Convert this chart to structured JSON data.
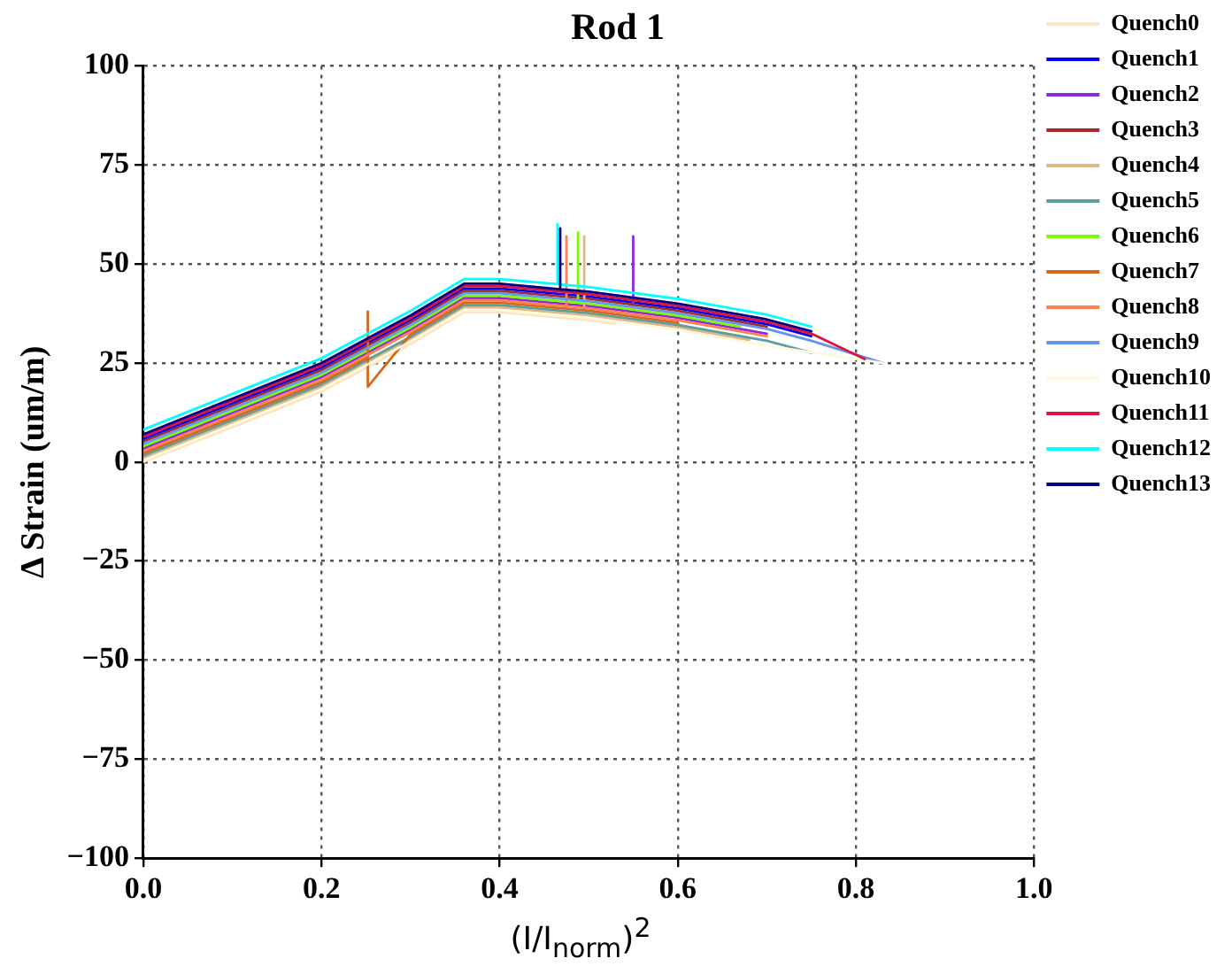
{
  "chart_data": {
    "type": "line",
    "title": "Rod 1",
    "xlabel": "(I/I$_{norm}$)$^{2}$",
    "ylabel": "Δ Strain (um/m)",
    "xlim": [
      0,
      1
    ],
    "ylim": [
      -100,
      100
    ],
    "xticks": [
      {
        "value": 0,
        "label": "0.0"
      },
      {
        "value": 0.2,
        "label": "0.2"
      },
      {
        "value": 0.4,
        "label": "0.4"
      },
      {
        "value": 0.6,
        "label": "0.6"
      },
      {
        "value": 0.8,
        "label": "0.8"
      },
      {
        "value": 1,
        "label": "1.0"
      }
    ],
    "yticks": [
      {
        "value": -100,
        "label": "−100"
      },
      {
        "value": -75,
        "label": "−75"
      },
      {
        "value": -50,
        "label": "−50"
      },
      {
        "value": -25,
        "label": "−25"
      },
      0,
      25,
      50,
      75,
      100
    ],
    "grid": true,
    "legend": "top right",
    "marker": "none",
    "line_style": "solid",
    "series": [
      {
        "name": "Quench0",
        "color": "#fde5c4",
        "x": [
          0,
          0.1,
          0.2,
          0.3,
          0.36,
          0.4,
          0.5,
          0.53
        ],
        "values": [
          0,
          8.8,
          17.8,
          29.8,
          37.8,
          37.8,
          35.8,
          34.9
        ]
      },
      {
        "name": "Quench1",
        "color": "#0000ff",
        "x": [
          0,
          0.1,
          0.2,
          0.3,
          0.36,
          0.4,
          0.5,
          0.6,
          0.7,
          0.75
        ],
        "values": [
          5.8,
          14.8,
          23.8,
          35.8,
          43.8,
          43.8,
          41.8,
          38.8,
          34.8,
          31.8
        ]
      },
      {
        "name": "Quench2",
        "color": "#8a2be2",
        "x": [
          0,
          0.1,
          0.2,
          0.3,
          0.36,
          0.4,
          0.5,
          0.55,
          0.55,
          0.55,
          0.6,
          0.7
        ],
        "values": [
          3.4,
          12.4,
          21.4,
          33.4,
          41.4,
          41.4,
          39.4,
          37.9,
          57,
          37.9,
          36.4,
          32.4
        ]
      },
      {
        "name": "Quench3",
        "color": "#a52a2a",
        "x": [
          0,
          0.1,
          0.2,
          0.3,
          0.36,
          0.4,
          0.5,
          0.6,
          0.7
        ],
        "values": [
          5.2,
          14.2,
          23.2,
          35.2,
          43.2,
          43.2,
          41.2,
          38.2,
          34.2
        ]
      },
      {
        "name": "Quench4",
        "color": "#deb887",
        "x": [
          0,
          0.1,
          0.2,
          0.3,
          0.36,
          0.4,
          0.495,
          0.495,
          0.495,
          0.5,
          0.6,
          0.68
        ],
        "values": [
          1,
          10,
          19,
          31,
          39,
          39,
          37.1,
          57,
          37.1,
          37,
          34,
          30.8
        ]
      },
      {
        "name": "Quench5",
        "color": "#5f9ea0",
        "x": [
          0,
          0.1,
          0.2,
          0.3,
          0.36,
          0.4,
          0.5,
          0.6,
          0.7,
          0.75
        ],
        "values": [
          1.6,
          10.6,
          19.6,
          31.6,
          39.6,
          39.6,
          37.6,
          34.6,
          30.6,
          27.6
        ]
      },
      {
        "name": "Quench6",
        "color": "#7cfc00",
        "x": [
          0,
          0.1,
          0.2,
          0.3,
          0.36,
          0.4,
          0.488,
          0.488,
          0.488,
          0.5,
          0.6,
          0.67
        ],
        "values": [
          4,
          13,
          22,
          34,
          42,
          42,
          40.2,
          58,
          40.2,
          40,
          37,
          34.2
        ]
      },
      {
        "name": "Quench7",
        "color": "#d2691e",
        "x": [
          0,
          0.1,
          0.2,
          0.252,
          0.252,
          0.252,
          0.3,
          0.36,
          0.4,
          0.5,
          0.6
        ],
        "values": [
          2.2,
          11.2,
          20.2,
          26.4,
          38,
          19,
          32.2,
          40.2,
          40.2,
          38.2,
          35.2
        ]
      },
      {
        "name": "Quench8",
        "color": "#ff7f50",
        "x": [
          0,
          0.1,
          0.2,
          0.3,
          0.36,
          0.4,
          0.475,
          0.475,
          0.475,
          0.5,
          0.6,
          0.7
        ],
        "values": [
          2.8,
          11.8,
          20.8,
          32.8,
          40.8,
          40.8,
          39.3,
          57,
          39.3,
          38.8,
          35.8,
          31.8
        ]
      },
      {
        "name": "Quench9",
        "color": "#6495ed",
        "x": [
          0,
          0.1,
          0.2,
          0.3,
          0.36,
          0.4,
          0.5,
          0.6,
          0.7,
          0.75,
          0.83
        ],
        "values": [
          4.6,
          13.6,
          22.6,
          34.6,
          42.6,
          42.6,
          40.6,
          37.6,
          33.6,
          30.6,
          25
        ]
      },
      {
        "name": "Quench10",
        "color": "#fff8dc",
        "x": [
          0,
          0.1,
          0.2,
          0.3,
          0.36,
          0.4,
          0.5,
          0.6,
          0.7,
          0.83
        ],
        "values": [
          0.4,
          9.4,
          18.4,
          30.4,
          38.4,
          38.4,
          36.4,
          33.4,
          29.4,
          25
        ]
      },
      {
        "name": "Quench11",
        "color": "#dc143c",
        "x": [
          0,
          0.1,
          0.2,
          0.3,
          0.36,
          0.4,
          0.5,
          0.6,
          0.7,
          0.75,
          0.81
        ],
        "values": [
          6.4,
          15.4,
          24.4,
          36.4,
          44.4,
          44.4,
          42.4,
          39.4,
          35.4,
          32.4,
          26
        ]
      },
      {
        "name": "Quench12",
        "color": "#00ffff",
        "x": [
          0,
          0.1,
          0.2,
          0.3,
          0.36,
          0.4,
          0.465,
          0.465,
          0.465,
          0.5,
          0.6,
          0.7,
          0.75
        ],
        "values": [
          8.2,
          17.2,
          26.2,
          38.2,
          46.2,
          46.2,
          44.9,
          60,
          44.9,
          44.2,
          41.2,
          37.2,
          34.2
        ]
      },
      {
        "name": "Quench13",
        "color": "#000080",
        "x": [
          0,
          0.1,
          0.2,
          0.3,
          0.36,
          0.4,
          0.468,
          0.468,
          0.468,
          0.5,
          0.6,
          0.7,
          0.75
        ],
        "values": [
          7,
          16,
          25,
          37,
          45,
          45,
          43.6,
          59,
          43.6,
          43,
          40,
          36,
          33
        ]
      }
    ]
  }
}
